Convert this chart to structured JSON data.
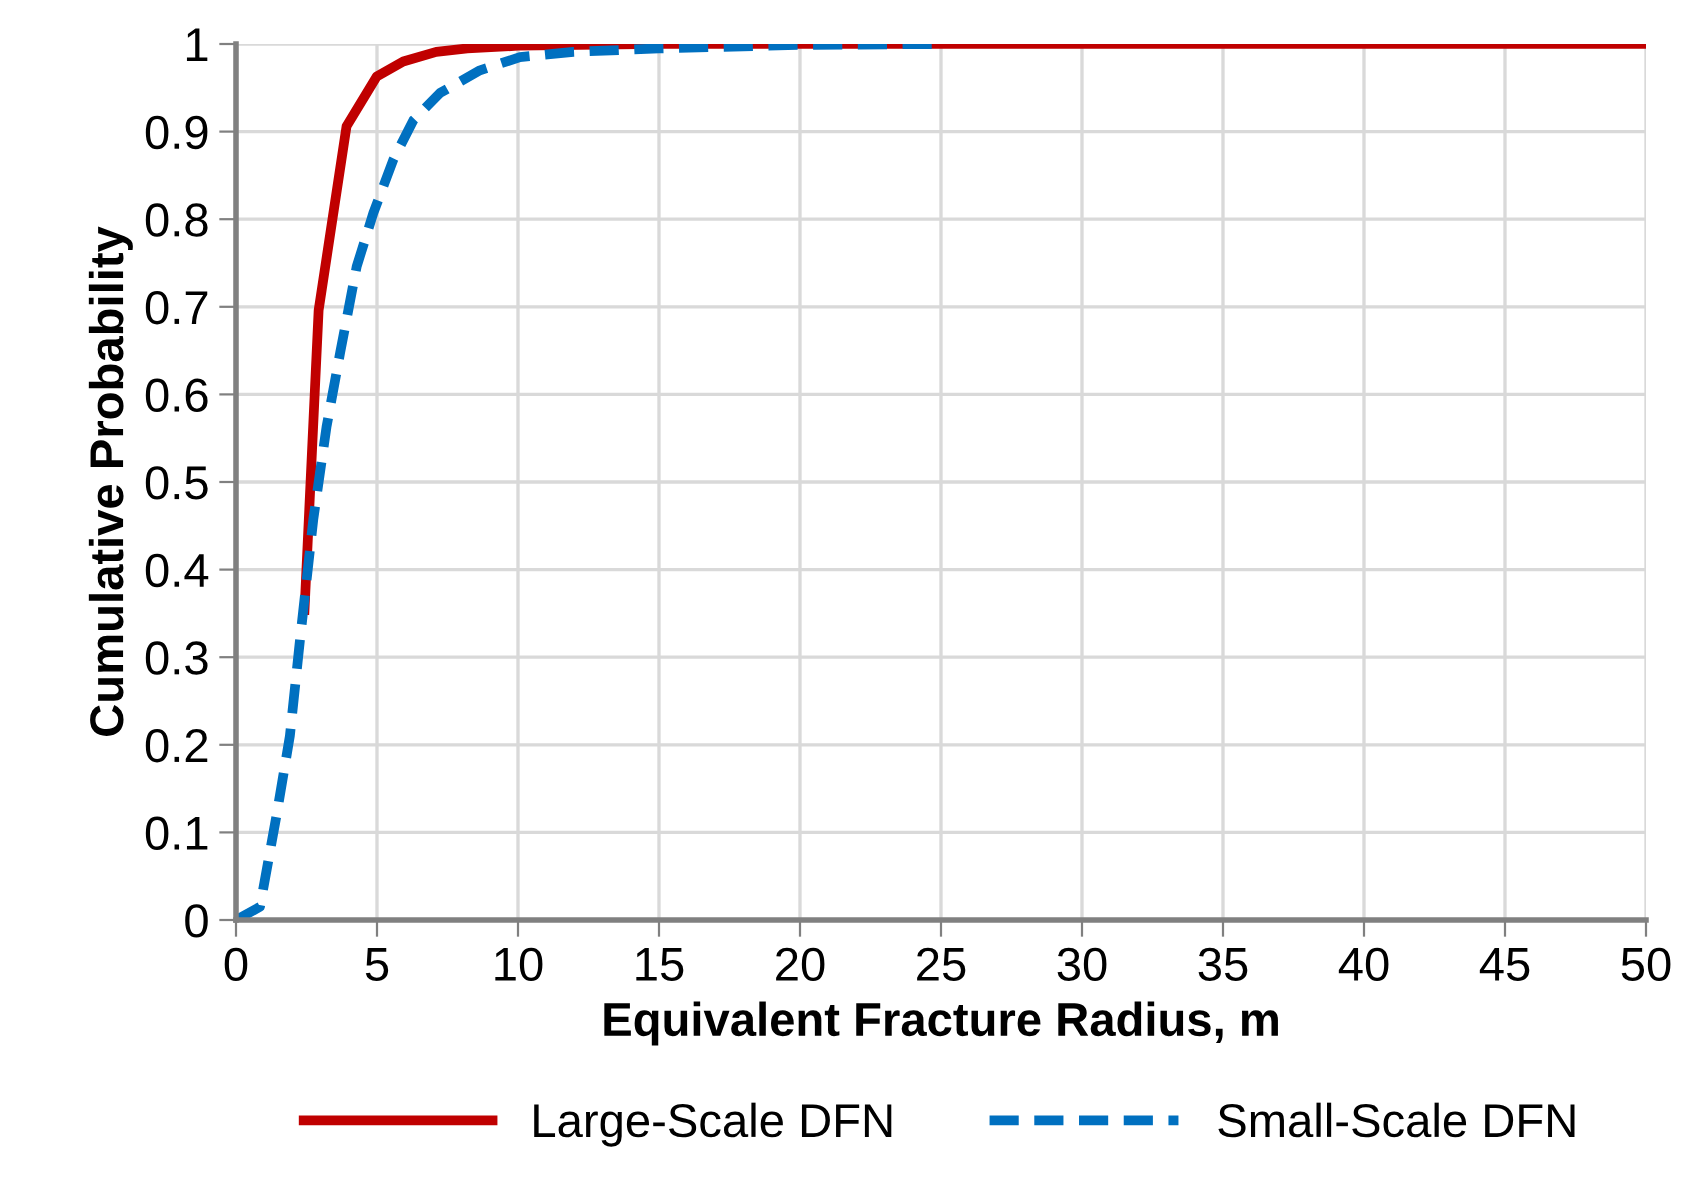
{
  "chart_data": {
    "type": "line",
    "xlabel": "Equivalent Fracture Radius, m",
    "ylabel": "Cumulative Probability",
    "xlim": [
      0,
      50
    ],
    "ylim": [
      0,
      1
    ],
    "xticks": [
      0,
      5,
      10,
      15,
      20,
      25,
      30,
      35,
      40,
      45,
      50
    ],
    "yticks": [
      0,
      0.1,
      0.2,
      0.3,
      0.4,
      0.5,
      0.6,
      0.7,
      0.8,
      0.9,
      1
    ],
    "grid": true,
    "legend": "bottom",
    "series": [
      {
        "name": "Large-Scale DFN",
        "color": "#c00000",
        "line_style": "solid",
        "x": [
          2.43,
          2.93,
          3.92,
          4.99,
          5.93,
          7.1,
          8.2,
          10,
          15,
          20,
          25,
          30,
          35,
          40,
          45,
          50
        ],
        "values": [
          0.354,
          0.696,
          0.906,
          0.963,
          0.98,
          0.991,
          0.995,
          0.998,
          1,
          1,
          1,
          1,
          1,
          1,
          1,
          1
        ]
      },
      {
        "name": "Small-Scale DFN",
        "color": "#0070c0",
        "line_style": "dashed",
        "x": [
          0,
          0.85,
          1.44,
          1.91,
          2.27,
          2.74,
          3.21,
          3.69,
          4.28,
          4.87,
          5.58,
          6.29,
          7.23,
          8.65,
          10.07,
          11.96,
          15,
          20,
          25
        ],
        "values": [
          0,
          0.015,
          0.12,
          0.21,
          0.32,
          0.457,
          0.563,
          0.647,
          0.746,
          0.807,
          0.868,
          0.913,
          0.944,
          0.97,
          0.985,
          0.991,
          0.995,
          0.999,
          1
        ]
      }
    ]
  }
}
